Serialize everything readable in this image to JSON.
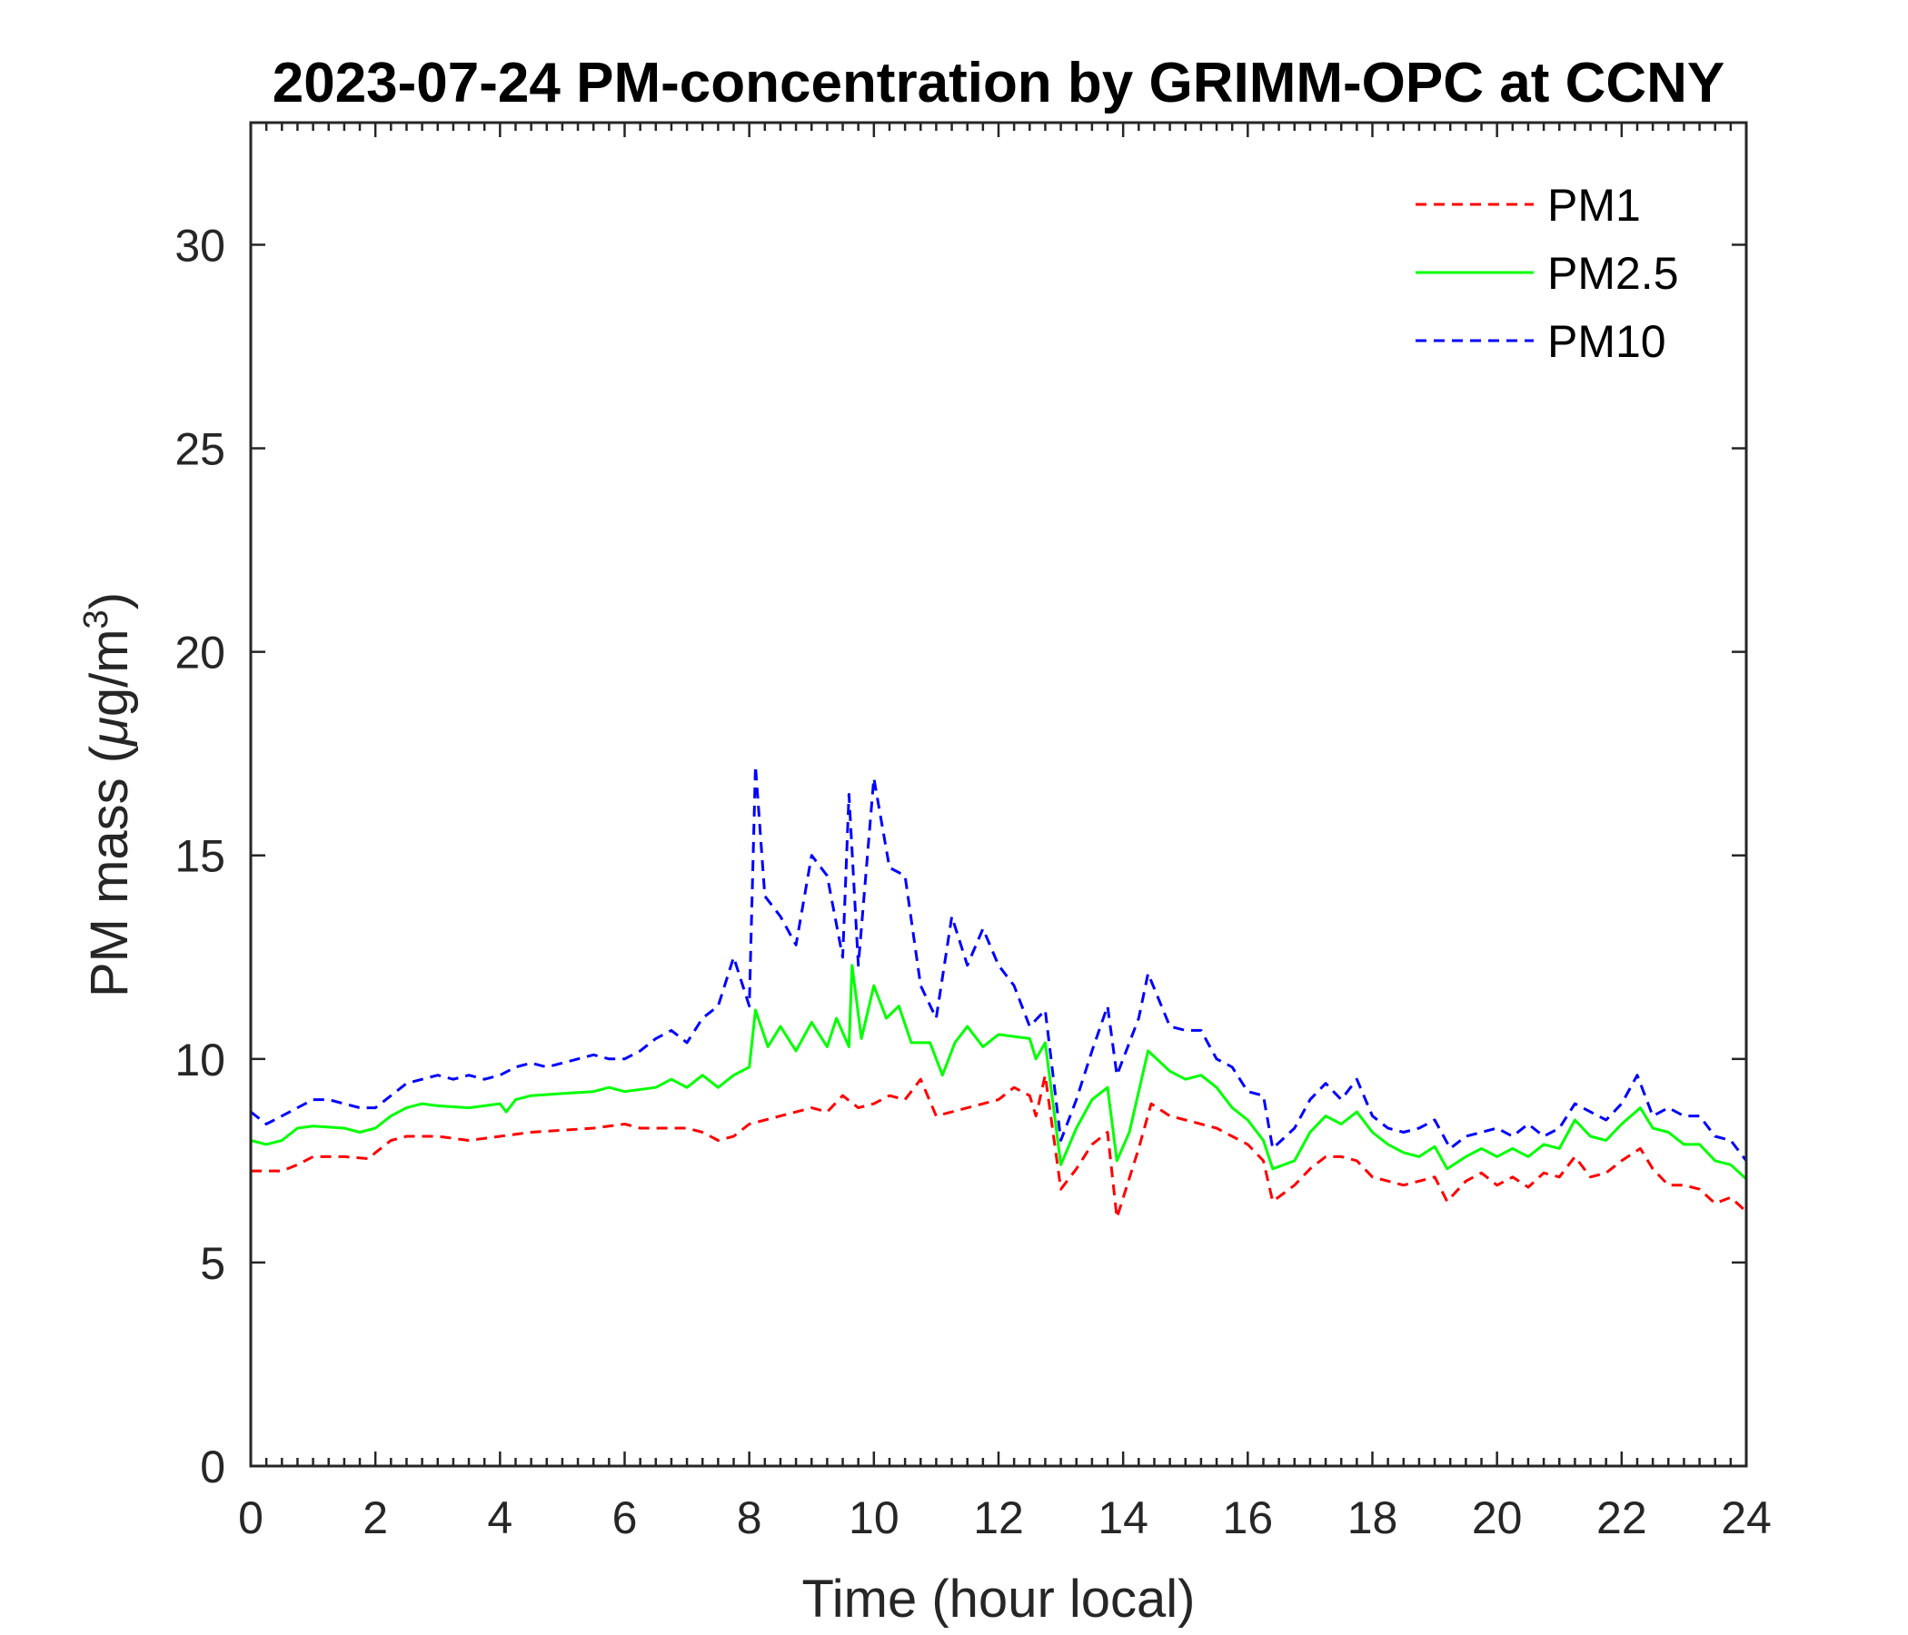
{
  "chart_data": {
    "type": "line",
    "title": "2023-07-24 PM-concentration by GRIMM-OPC at CCNY",
    "xlabel": "Time (hour local)",
    "ylabel": "PM mass (μg/m³)",
    "ylabel_parts": {
      "main": "PM mass (",
      "mu": "μ",
      "unit": "g/m",
      "sup": "3",
      "close": ")"
    },
    "xlim": [
      0,
      24
    ],
    "ylim": [
      0,
      33
    ],
    "xticks": [
      0,
      2,
      4,
      6,
      8,
      10,
      12,
      14,
      16,
      18,
      20,
      22,
      24
    ],
    "yticks": [
      0,
      5,
      10,
      15,
      20,
      25,
      30
    ],
    "grid": false,
    "legend_position": "top-right",
    "series": [
      {
        "name": "PM1",
        "color": "#ff0000",
        "style": "dashed",
        "x": [
          0,
          0.5,
          0.75,
          1,
          1.5,
          1.9,
          2,
          2.25,
          2.5,
          3,
          3.5,
          4,
          4.5,
          5,
          5.5,
          6,
          6.25,
          6.5,
          7,
          7.25,
          7.5,
          7.75,
          8,
          8.5,
          9,
          9.25,
          9.5,
          9.75,
          10,
          10.25,
          10.5,
          10.75,
          11,
          11.5,
          12,
          12.25,
          12.5,
          12.6,
          12.75,
          13,
          13.25,
          13.5,
          13.75,
          13.9,
          14.25,
          14.45,
          14.75,
          15,
          15.5,
          15.75,
          16,
          16.25,
          16.4,
          16.75,
          17,
          17.25,
          17.5,
          17.75,
          18,
          18.5,
          18.75,
          19,
          19.2,
          19.5,
          19.75,
          20,
          20.25,
          20.5,
          20.75,
          21,
          21.25,
          21.5,
          21.75,
          22,
          22.3,
          22.5,
          22.75,
          23,
          23.25,
          23.5,
          23.75,
          24
        ],
        "y": [
          7.25,
          7.25,
          7.4,
          7.6,
          7.6,
          7.55,
          7.7,
          8.0,
          8.1,
          8.1,
          8.0,
          8.1,
          8.2,
          8.25,
          8.3,
          8.4,
          8.3,
          8.3,
          8.3,
          8.2,
          8.0,
          8.1,
          8.4,
          8.6,
          8.8,
          8.7,
          9.1,
          8.8,
          8.9,
          9.1,
          9.0,
          9.5,
          8.6,
          8.8,
          9.0,
          9.3,
          9.1,
          8.6,
          9.6,
          6.8,
          7.3,
          7.9,
          8.2,
          6.1,
          7.8,
          8.9,
          8.6,
          8.5,
          8.3,
          8.1,
          7.9,
          7.5,
          6.5,
          6.9,
          7.3,
          7.6,
          7.6,
          7.5,
          7.1,
          6.9,
          7.0,
          7.1,
          6.5,
          7.0,
          7.2,
          6.9,
          7.1,
          6.85,
          7.2,
          7.1,
          7.6,
          7.1,
          7.2,
          7.5,
          7.8,
          7.3,
          6.9,
          6.9,
          6.8,
          6.45,
          6.6,
          6.25
        ]
      },
      {
        "name": "PM2.5",
        "color": "#00ff00",
        "style": "solid",
        "x": [
          0,
          0.25,
          0.5,
          0.75,
          1,
          1.5,
          1.75,
          2,
          2.25,
          2.5,
          2.75,
          3,
          3.5,
          4,
          4.1,
          4.25,
          4.5,
          5,
          5.5,
          5.75,
          6,
          6.5,
          6.75,
          7,
          7.25,
          7.5,
          7.75,
          8,
          8.1,
          8.3,
          8.5,
          8.75,
          9,
          9.25,
          9.4,
          9.6,
          9.65,
          9.8,
          10,
          10.2,
          10.4,
          10.6,
          10.9,
          11.1,
          11.3,
          11.5,
          11.75,
          12,
          12.5,
          12.6,
          12.75,
          13,
          13.25,
          13.5,
          13.75,
          13.9,
          14.1,
          14.4,
          14.75,
          15,
          15.25,
          15.5,
          15.75,
          16,
          16.25,
          16.4,
          16.75,
          17,
          17.25,
          17.5,
          17.75,
          18,
          18.25,
          18.5,
          18.75,
          19,
          19.2,
          19.5,
          19.75,
          20,
          20.25,
          20.5,
          20.75,
          21,
          21.25,
          21.5,
          21.75,
          22,
          22.3,
          22.5,
          22.75,
          23,
          23.25,
          23.5,
          23.75,
          24
        ],
        "y": [
          8.0,
          7.9,
          8.0,
          8.3,
          8.35,
          8.3,
          8.2,
          8.3,
          8.6,
          8.8,
          8.9,
          8.85,
          8.8,
          8.9,
          8.7,
          9.0,
          9.1,
          9.15,
          9.2,
          9.3,
          9.2,
          9.3,
          9.5,
          9.3,
          9.6,
          9.3,
          9.6,
          9.8,
          11.2,
          10.3,
          10.8,
          10.2,
          10.9,
          10.3,
          11.0,
          10.3,
          12.3,
          10.5,
          11.8,
          11.0,
          11.3,
          10.4,
          10.4,
          9.6,
          10.4,
          10.8,
          10.3,
          10.6,
          10.5,
          10.0,
          10.4,
          7.4,
          8.3,
          9.0,
          9.3,
          7.5,
          8.2,
          10.2,
          9.7,
          9.5,
          9.6,
          9.3,
          8.8,
          8.5,
          8.0,
          7.3,
          7.5,
          8.2,
          8.6,
          8.4,
          8.7,
          8.2,
          7.9,
          7.7,
          7.6,
          7.85,
          7.3,
          7.6,
          7.8,
          7.6,
          7.8,
          7.6,
          7.9,
          7.8,
          8.5,
          8.1,
          8.0,
          8.4,
          8.8,
          8.3,
          8.2,
          7.9,
          7.9,
          7.5,
          7.4,
          7.05
        ]
      },
      {
        "name": "PM10",
        "color": "#0000ff",
        "style": "dashed",
        "x": [
          0,
          0.25,
          0.5,
          0.75,
          1,
          1.25,
          1.5,
          1.75,
          2,
          2.25,
          2.5,
          2.75,
          3,
          3.25,
          3.5,
          3.75,
          4,
          4.25,
          4.5,
          4.75,
          5,
          5.25,
          5.5,
          5.75,
          6,
          6.25,
          6.5,
          6.75,
          7,
          7.25,
          7.5,
          7.75,
          8,
          8.1,
          8.25,
          8.5,
          8.75,
          9,
          9.25,
          9.5,
          9.6,
          9.75,
          10,
          10.25,
          10.5,
          10.75,
          11,
          11.25,
          11.5,
          11.75,
          12,
          12.25,
          12.5,
          12.75,
          13,
          13.25,
          13.5,
          13.75,
          13.9,
          14.25,
          14.4,
          14.75,
          15,
          15.25,
          15.5,
          15.75,
          16,
          16.25,
          16.4,
          16.75,
          17,
          17.25,
          17.5,
          17.75,
          18,
          18.25,
          18.5,
          18.75,
          19,
          19.25,
          19.5,
          19.75,
          20,
          20.25,
          20.5,
          20.75,
          21,
          21.25,
          21.5,
          21.75,
          22,
          22.25,
          22.5,
          22.75,
          23,
          23.25,
          23.5,
          23.75,
          24
        ],
        "y": [
          8.7,
          8.4,
          8.6,
          8.8,
          9.0,
          9.0,
          8.9,
          8.8,
          8.8,
          9.1,
          9.4,
          9.5,
          9.6,
          9.5,
          9.6,
          9.5,
          9.6,
          9.8,
          9.9,
          9.8,
          9.9,
          10.0,
          10.1,
          10.0,
          10.0,
          10.2,
          10.5,
          10.7,
          10.4,
          11.0,
          11.3,
          12.5,
          11.3,
          17.2,
          14.0,
          13.5,
          12.8,
          15.0,
          14.5,
          12.5,
          16.5,
          12.3,
          16.9,
          14.7,
          14.5,
          11.8,
          11.0,
          13.5,
          12.3,
          13.2,
          12.3,
          11.8,
          10.8,
          11.2,
          8.0,
          9.0,
          10.2,
          11.3,
          9.6,
          11.0,
          12.1,
          10.8,
          10.7,
          10.7,
          10.0,
          9.8,
          9.2,
          9.1,
          7.8,
          8.3,
          9.0,
          9.4,
          9.0,
          9.5,
          8.6,
          8.3,
          8.2,
          8.3,
          8.5,
          7.8,
          8.1,
          8.2,
          8.3,
          8.1,
          8.4,
          8.1,
          8.3,
          8.9,
          8.7,
          8.5,
          8.9,
          9.6,
          8.6,
          8.8,
          8.6,
          8.6,
          8.1,
          8.0,
          7.5
        ]
      }
    ]
  }
}
